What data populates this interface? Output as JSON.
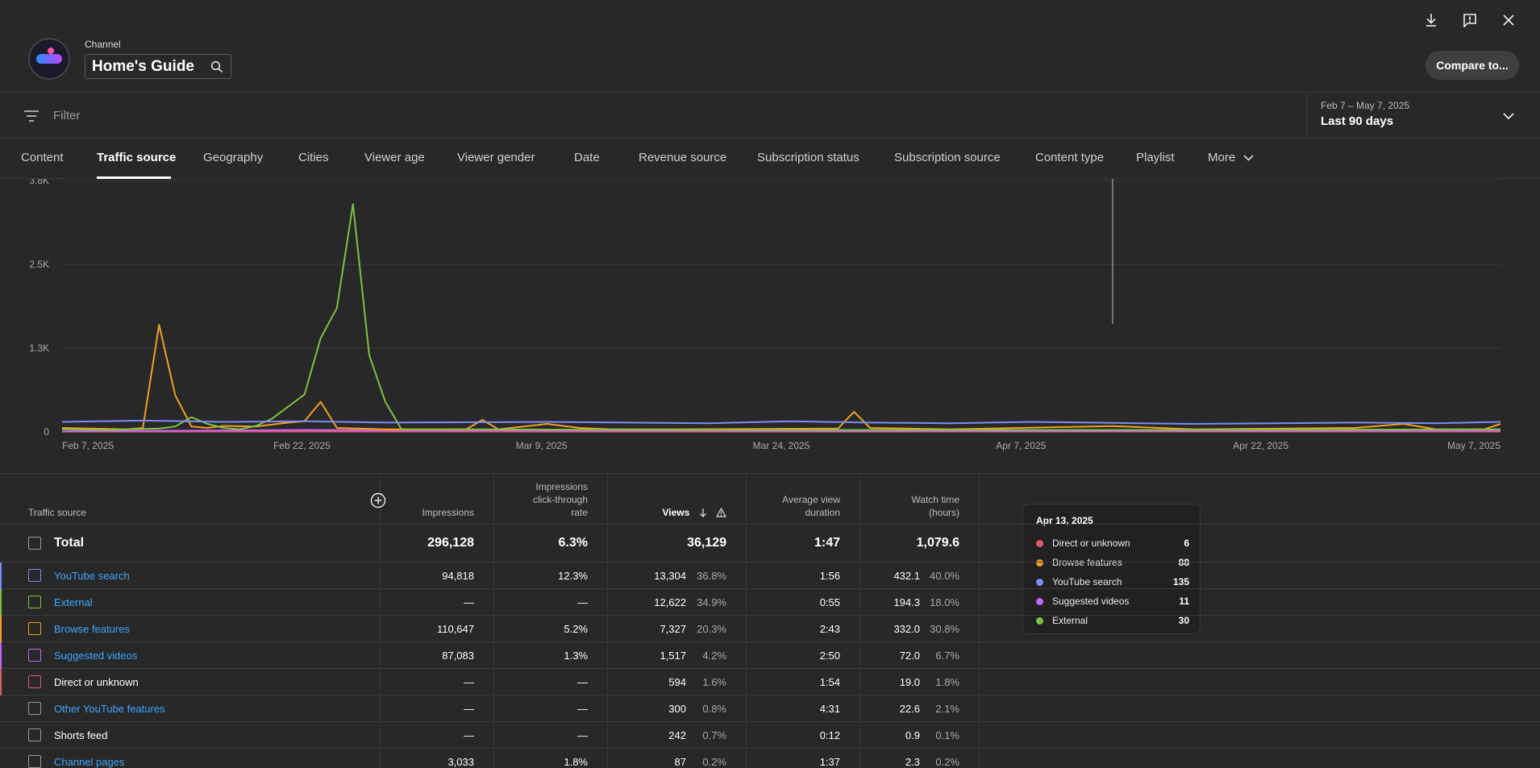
{
  "header": {
    "channel_label": "Channel",
    "channel_name": "Home's Guide",
    "compare_label": "Compare to..."
  },
  "filter": {
    "placeholder": "Filter",
    "date_range": "Feb 7 – May 7, 2025",
    "period": "Last 90 days"
  },
  "tabs": [
    {
      "label": "Content"
    },
    {
      "label": "Traffic source"
    },
    {
      "label": "Geography"
    },
    {
      "label": "Cities"
    },
    {
      "label": "Viewer age"
    },
    {
      "label": "Viewer gender"
    },
    {
      "label": "Date"
    },
    {
      "label": "Revenue source"
    },
    {
      "label": "Subscription status"
    },
    {
      "label": "Subscription source"
    },
    {
      "label": "Content type"
    },
    {
      "label": "Playlist"
    },
    {
      "label": "More"
    }
  ],
  "tooltip": {
    "date": "Apr 13, 2025",
    "rows": [
      {
        "label": "Direct or unknown",
        "value": "6",
        "color": "#e05a6a"
      },
      {
        "label": "Browse features",
        "value": "88",
        "color": "#f0a020"
      },
      {
        "label": "YouTube search",
        "value": "135",
        "color": "#7b8cf5"
      },
      {
        "label": "Suggested videos",
        "value": "11",
        "color": "#c466f0"
      },
      {
        "label": "External",
        "value": "30",
        "color": "#7cc242"
      }
    ]
  },
  "chart_data": {
    "type": "line",
    "y_ticks": [
      "0",
      "1.3K",
      "2.5K",
      "3.8K"
    ],
    "x_ticks": [
      "Feb 7, 2025",
      "Feb 22, 2025",
      "Mar 9, 2025",
      "Mar 24, 2025",
      "Apr 7, 2025",
      "Apr 22, 2025",
      "May 7, 2025"
    ],
    "ylim": [
      0,
      3800
    ],
    "n_points": 90,
    "hover_index": 65,
    "series": [
      {
        "name": "YouTube search",
        "color": "#7b8cf5",
        "points": [
          [
            0,
            150
          ],
          [
            5,
            170
          ],
          [
            10,
            150
          ],
          [
            15,
            160
          ],
          [
            20,
            140
          ],
          [
            30,
            150
          ],
          [
            40,
            130
          ],
          [
            45,
            160
          ],
          [
            50,
            140
          ],
          [
            55,
            130
          ],
          [
            60,
            150
          ],
          [
            65,
            135
          ],
          [
            70,
            120
          ],
          [
            75,
            130
          ],
          [
            80,
            140
          ],
          [
            85,
            130
          ],
          [
            89,
            150
          ]
        ]
      },
      {
        "name": "External",
        "color": "#7cc242",
        "points": [
          [
            0,
            40
          ],
          [
            3,
            30
          ],
          [
            6,
            50
          ],
          [
            7,
            80
          ],
          [
            8,
            220
          ],
          [
            9,
            120
          ],
          [
            10,
            60
          ],
          [
            11,
            40
          ],
          [
            12,
            90
          ],
          [
            13,
            200
          ],
          [
            14,
            380
          ],
          [
            15,
            560
          ],
          [
            16,
            1400
          ],
          [
            17,
            1850
          ],
          [
            18,
            3400
          ],
          [
            19,
            1150
          ],
          [
            20,
            450
          ],
          [
            21,
            40
          ],
          [
            25,
            40
          ],
          [
            40,
            30
          ],
          [
            60,
            30
          ],
          [
            70,
            30
          ],
          [
            89,
            40
          ]
        ]
      },
      {
        "name": "Browse features",
        "color": "#f0a020",
        "points": [
          [
            0,
            60
          ],
          [
            4,
            40
          ],
          [
            5,
            60
          ],
          [
            6,
            1600
          ],
          [
            7,
            550
          ],
          [
            8,
            80
          ],
          [
            9,
            60
          ],
          [
            10,
            90
          ],
          [
            12,
            80
          ],
          [
            14,
            140
          ],
          [
            15,
            160
          ],
          [
            16,
            450
          ],
          [
            17,
            60
          ],
          [
            20,
            40
          ],
          [
            25,
            40
          ],
          [
            26,
            180
          ],
          [
            27,
            40
          ],
          [
            30,
            120
          ],
          [
            32,
            60
          ],
          [
            34,
            40
          ],
          [
            38,
            40
          ],
          [
            48,
            50
          ],
          [
            49,
            300
          ],
          [
            50,
            60
          ],
          [
            55,
            40
          ],
          [
            65,
            88
          ],
          [
            70,
            40
          ],
          [
            80,
            60
          ],
          [
            83,
            120
          ],
          [
            85,
            40
          ],
          [
            88,
            40
          ],
          [
            89,
            120
          ]
        ]
      },
      {
        "name": "Suggested videos",
        "color": "#c466f0",
        "points": [
          [
            0,
            10
          ],
          [
            15,
            30
          ],
          [
            30,
            20
          ],
          [
            45,
            15
          ],
          [
            60,
            12
          ],
          [
            75,
            14
          ],
          [
            89,
            20
          ]
        ]
      },
      {
        "name": "Direct or unknown",
        "color": "#e05a6a",
        "points": [
          [
            0,
            5
          ],
          [
            20,
            6
          ],
          [
            40,
            5
          ],
          [
            60,
            6
          ],
          [
            89,
            6
          ]
        ]
      }
    ]
  },
  "table": {
    "headers": {
      "source": "Traffic source",
      "impressions": "Impressions",
      "ctr_1": "Impressions",
      "ctr_2": "click-through",
      "ctr_3": "rate",
      "views": "Views",
      "avd_1": "Average view",
      "avd_2": "duration",
      "wt_1": "Watch time",
      "wt_2": "(hours)"
    },
    "total": {
      "label": "Total",
      "impressions": "296,128",
      "ctr": "6.3%",
      "views": "36,129",
      "avd": "1:47",
      "watch": "1,079.6"
    },
    "rows": [
      {
        "label": "YouTube search",
        "link": true,
        "accent": "#7b8cf5",
        "box": "#7b8cf5",
        "impressions": "94,818",
        "ctr": "12.3%",
        "views": "13,304",
        "views_pct": "36.8%",
        "avd": "1:56",
        "watch": "432.1",
        "watch_pct": "40.0%"
      },
      {
        "label": "External",
        "link": true,
        "accent": "#7cc242",
        "box": "#7cc242",
        "impressions": "—",
        "ctr": "—",
        "views": "12,622",
        "views_pct": "34.9%",
        "avd": "0:55",
        "watch": "194.3",
        "watch_pct": "18.0%"
      },
      {
        "label": "Browse features",
        "link": true,
        "accent": "#f0a020",
        "box": "#f0a020",
        "impressions": "110,647",
        "ctr": "5.2%",
        "views": "7,327",
        "views_pct": "20.3%",
        "avd": "2:43",
        "watch": "332.0",
        "watch_pct": "30.8%"
      },
      {
        "label": "Suggested videos",
        "link": true,
        "accent": "#c466f0",
        "box": "#c466f0",
        "impressions": "87,083",
        "ctr": "1.3%",
        "views": "1,517",
        "views_pct": "4.2%",
        "avd": "2:50",
        "watch": "72.0",
        "watch_pct": "6.7%"
      },
      {
        "label": "Direct or unknown",
        "link": false,
        "accent": "#e05a6a",
        "box": "#e05a6a",
        "impressions": "—",
        "ctr": "—",
        "views": "594",
        "views_pct": "1.6%",
        "avd": "1:54",
        "watch": "19.0",
        "watch_pct": "1.8%"
      },
      {
        "label": "Other YouTube features",
        "link": true,
        "accent": "",
        "box": "#9a9a9a",
        "impressions": "—",
        "ctr": "—",
        "views": "300",
        "views_pct": "0.8%",
        "avd": "4:31",
        "watch": "22.6",
        "watch_pct": "2.1%"
      },
      {
        "label": "Shorts feed",
        "link": false,
        "accent": "",
        "box": "#9a9a9a",
        "impressions": "—",
        "ctr": "—",
        "views": "242",
        "views_pct": "0.7%",
        "avd": "0:12",
        "watch": "0.9",
        "watch_pct": "0.1%"
      },
      {
        "label": "Channel pages",
        "link": true,
        "accent": "",
        "box": "#9a9a9a",
        "impressions": "3,033",
        "ctr": "1.8%",
        "views": "87",
        "views_pct": "0.2%",
        "avd": "1:37",
        "watch": "2.3",
        "watch_pct": "0.2%"
      }
    ]
  }
}
